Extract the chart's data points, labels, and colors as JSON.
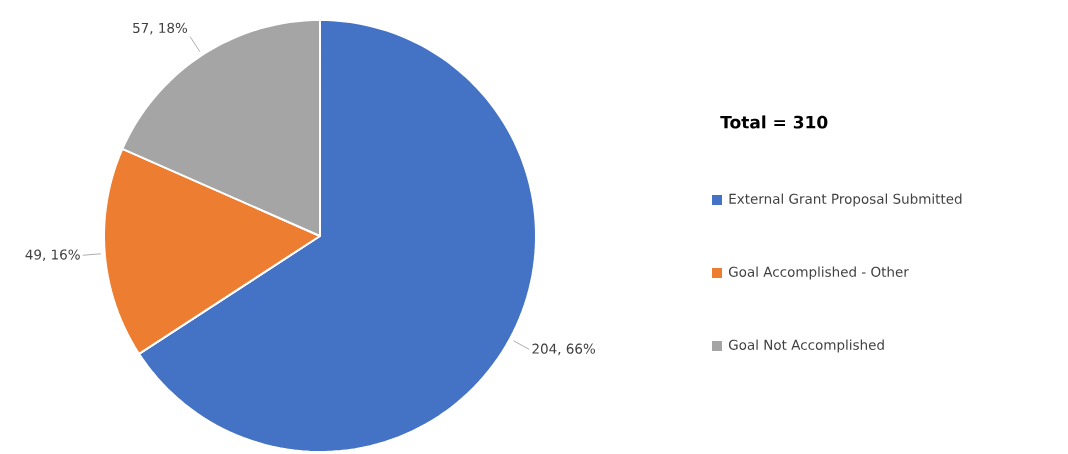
{
  "chart_data": {
    "type": "pie",
    "legend_title": "Total = 310",
    "categories": [
      "External Grant Proposal Submitted",
      "Goal Accomplished - Other",
      "Goal Not Accomplished"
    ],
    "values": [
      204,
      49,
      57
    ],
    "colors": [
      "#4472c4",
      "#ed7d31",
      "#a5a5a5"
    ],
    "value_labels": [
      "204, 66%",
      "49, 16%",
      "57, 18%"
    ],
    "legend": "right"
  }
}
